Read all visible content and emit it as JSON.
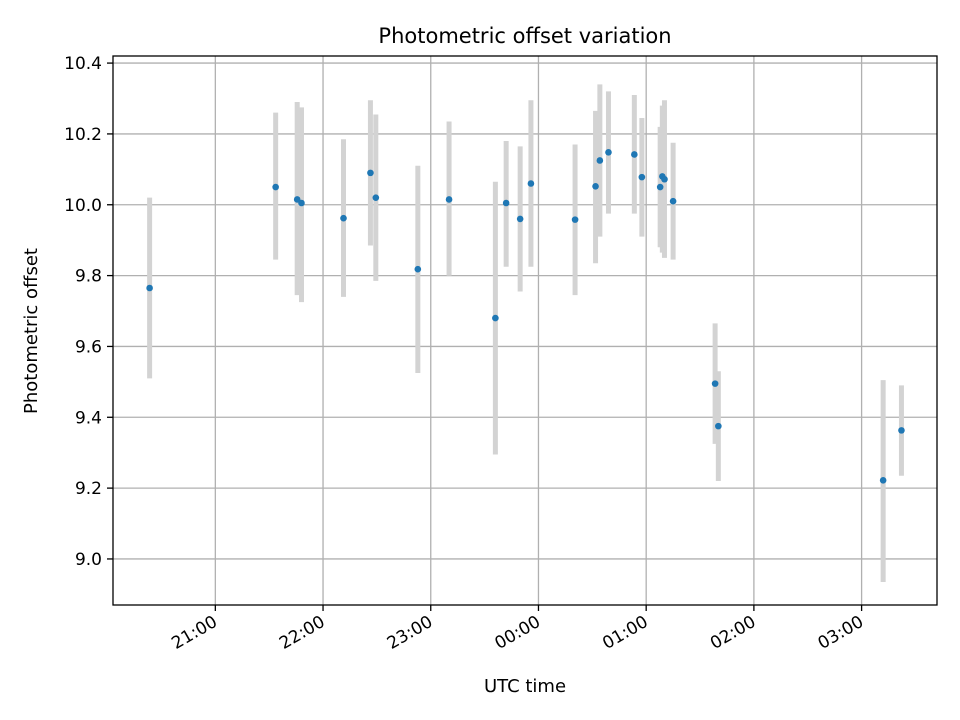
{
  "chart_data": {
    "type": "scatter",
    "title": "Photometric offset variation",
    "xlabel": "UTC time",
    "ylabel": "Photometric offset",
    "grid": true,
    "x_unit": "hours after 21:00 UTC",
    "xlim": [
      -0.95,
      6.7
    ],
    "ylim": [
      8.87,
      10.42
    ],
    "x_ticks": [
      {
        "value": 0,
        "label": "21:00"
      },
      {
        "value": 1,
        "label": "22:00"
      },
      {
        "value": 2,
        "label": "23:00"
      },
      {
        "value": 3,
        "label": "00:00"
      },
      {
        "value": 4,
        "label": "01:00"
      },
      {
        "value": 5,
        "label": "02:00"
      },
      {
        "value": 6,
        "label": "03:00"
      }
    ],
    "y_ticks": [
      {
        "value": 9.0,
        "label": "9.0"
      },
      {
        "value": 9.2,
        "label": "9.2"
      },
      {
        "value": 9.4,
        "label": "9.4"
      },
      {
        "value": 9.6,
        "label": "9.6"
      },
      {
        "value": 9.8,
        "label": "9.8"
      },
      {
        "value": 10.0,
        "label": "10.0"
      },
      {
        "value": 10.2,
        "label": "10.2"
      },
      {
        "value": 10.4,
        "label": "10.4"
      }
    ],
    "points": [
      {
        "x": -0.61,
        "y": 9.765,
        "lo": 9.51,
        "hi": 10.02
      },
      {
        "x": 0.56,
        "y": 10.05,
        "lo": 9.845,
        "hi": 10.26
      },
      {
        "x": 0.76,
        "y": 10.015,
        "lo": 9.745,
        "hi": 10.29
      },
      {
        "x": 0.8,
        "y": 10.005,
        "lo": 9.725,
        "hi": 10.275
      },
      {
        "x": 1.19,
        "y": 9.962,
        "lo": 9.74,
        "hi": 10.185
      },
      {
        "x": 1.44,
        "y": 10.09,
        "lo": 9.885,
        "hi": 10.295
      },
      {
        "x": 1.49,
        "y": 10.02,
        "lo": 9.785,
        "hi": 10.255
      },
      {
        "x": 1.88,
        "y": 9.818,
        "lo": 9.525,
        "hi": 10.11
      },
      {
        "x": 2.17,
        "y": 10.015,
        "lo": 9.8,
        "hi": 10.235
      },
      {
        "x": 2.6,
        "y": 9.68,
        "lo": 9.295,
        "hi": 10.065
      },
      {
        "x": 2.7,
        "y": 10.005,
        "lo": 9.825,
        "hi": 10.18
      },
      {
        "x": 2.83,
        "y": 9.96,
        "lo": 9.755,
        "hi": 10.165
      },
      {
        "x": 2.93,
        "y": 10.06,
        "lo": 9.825,
        "hi": 10.295
      },
      {
        "x": 3.34,
        "y": 9.958,
        "lo": 9.745,
        "hi": 10.17
      },
      {
        "x": 3.53,
        "y": 10.052,
        "lo": 9.835,
        "hi": 10.265
      },
      {
        "x": 3.57,
        "y": 10.125,
        "lo": 9.91,
        "hi": 10.34
      },
      {
        "x": 3.65,
        "y": 10.148,
        "lo": 9.975,
        "hi": 10.32
      },
      {
        "x": 3.89,
        "y": 10.142,
        "lo": 9.975,
        "hi": 10.31
      },
      {
        "x": 3.96,
        "y": 10.078,
        "lo": 9.91,
        "hi": 10.245
      },
      {
        "x": 4.13,
        "y": 10.05,
        "lo": 9.88,
        "hi": 10.22
      },
      {
        "x": 4.15,
        "y": 10.08,
        "lo": 9.865,
        "hi": 10.28
      },
      {
        "x": 4.17,
        "y": 10.072,
        "lo": 9.85,
        "hi": 10.295
      },
      {
        "x": 4.25,
        "y": 10.01,
        "lo": 9.845,
        "hi": 10.175
      },
      {
        "x": 4.64,
        "y": 9.495,
        "lo": 9.325,
        "hi": 9.665
      },
      {
        "x": 4.67,
        "y": 9.375,
        "lo": 9.22,
        "hi": 9.53
      },
      {
        "x": 6.2,
        "y": 9.222,
        "lo": 8.935,
        "hi": 9.505
      },
      {
        "x": 6.37,
        "y": 9.363,
        "lo": 9.235,
        "hi": 9.49
      }
    ],
    "colors": {
      "point": "#1f77b4",
      "errorbar": "#d3d3d3",
      "grid": "#b0b0b0",
      "axes": "#000000"
    }
  }
}
